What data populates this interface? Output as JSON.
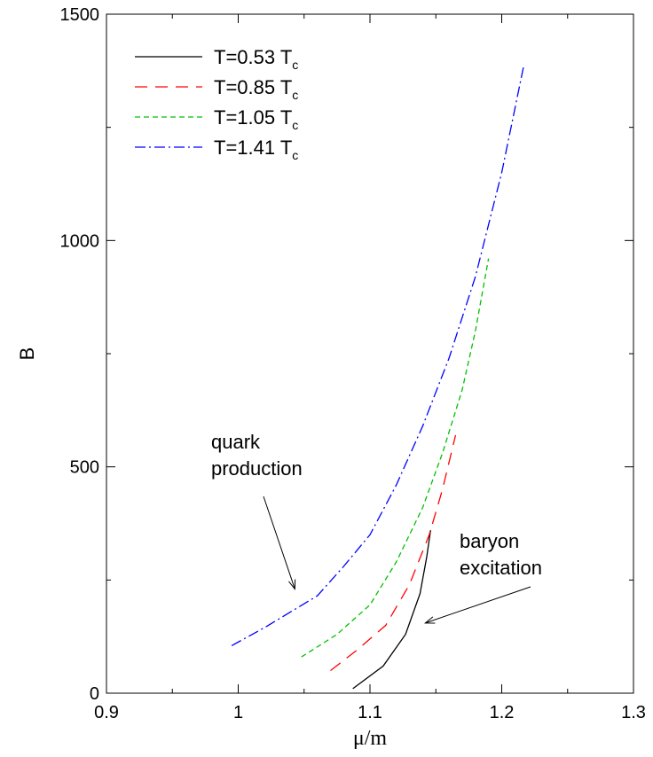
{
  "chart_data": {
    "type": "line",
    "xlabel": "μ/m",
    "ylabel": "B",
    "xlim": [
      0.9,
      1.3
    ],
    "ylim": [
      0,
      1500
    ],
    "x_ticks": [
      "0.9",
      "1",
      "1.1",
      "1.2",
      "1.3"
    ],
    "y_ticks": [
      "0",
      "500",
      "1000",
      "1500"
    ],
    "legend_position": "top-left",
    "series": [
      {
        "name": "T=0.53 T",
        "subscript": "c",
        "color": "#000000",
        "dash": "solid",
        "x": [
          1.087,
          1.11,
          1.127,
          1.138,
          1.143,
          1.146
        ],
        "y": [
          10,
          60,
          130,
          220,
          300,
          360
        ]
      },
      {
        "name": "T=0.85 T",
        "subscript": "c",
        "color": "#ff0000",
        "dash": "dashed",
        "x": [
          1.07,
          1.09,
          1.112,
          1.13,
          1.145,
          1.155,
          1.165
        ],
        "y": [
          50,
          95,
          150,
          240,
          350,
          450,
          570
        ]
      },
      {
        "name": "T=1.05 T",
        "subscript": "c",
        "color": "#00c000",
        "dash": "short-dashed",
        "x": [
          1.048,
          1.075,
          1.1,
          1.12,
          1.14,
          1.155,
          1.17,
          1.18,
          1.19
        ],
        "y": [
          80,
          130,
          195,
          290,
          410,
          530,
          670,
          800,
          960
        ]
      },
      {
        "name": "T=1.41 T",
        "subscript": "c",
        "color": "#0000ff",
        "dash": "dash-dot",
        "x": [
          0.995,
          1.02,
          1.04,
          1.06,
          1.08,
          1.1,
          1.12,
          1.14,
          1.16,
          1.18,
          1.2,
          1.217
        ],
        "y": [
          105,
          145,
          180,
          215,
          280,
          350,
          460,
          590,
          740,
          920,
          1150,
          1390
        ]
      }
    ],
    "annotations": [
      {
        "lines": [
          "quark",
          "production"
        ],
        "arrow_to": {
          "x": 1.043,
          "y": 230
        }
      },
      {
        "lines": [
          "baryon",
          "excitation"
        ],
        "arrow_to": {
          "x": 1.142,
          "y": 155
        }
      }
    ]
  }
}
